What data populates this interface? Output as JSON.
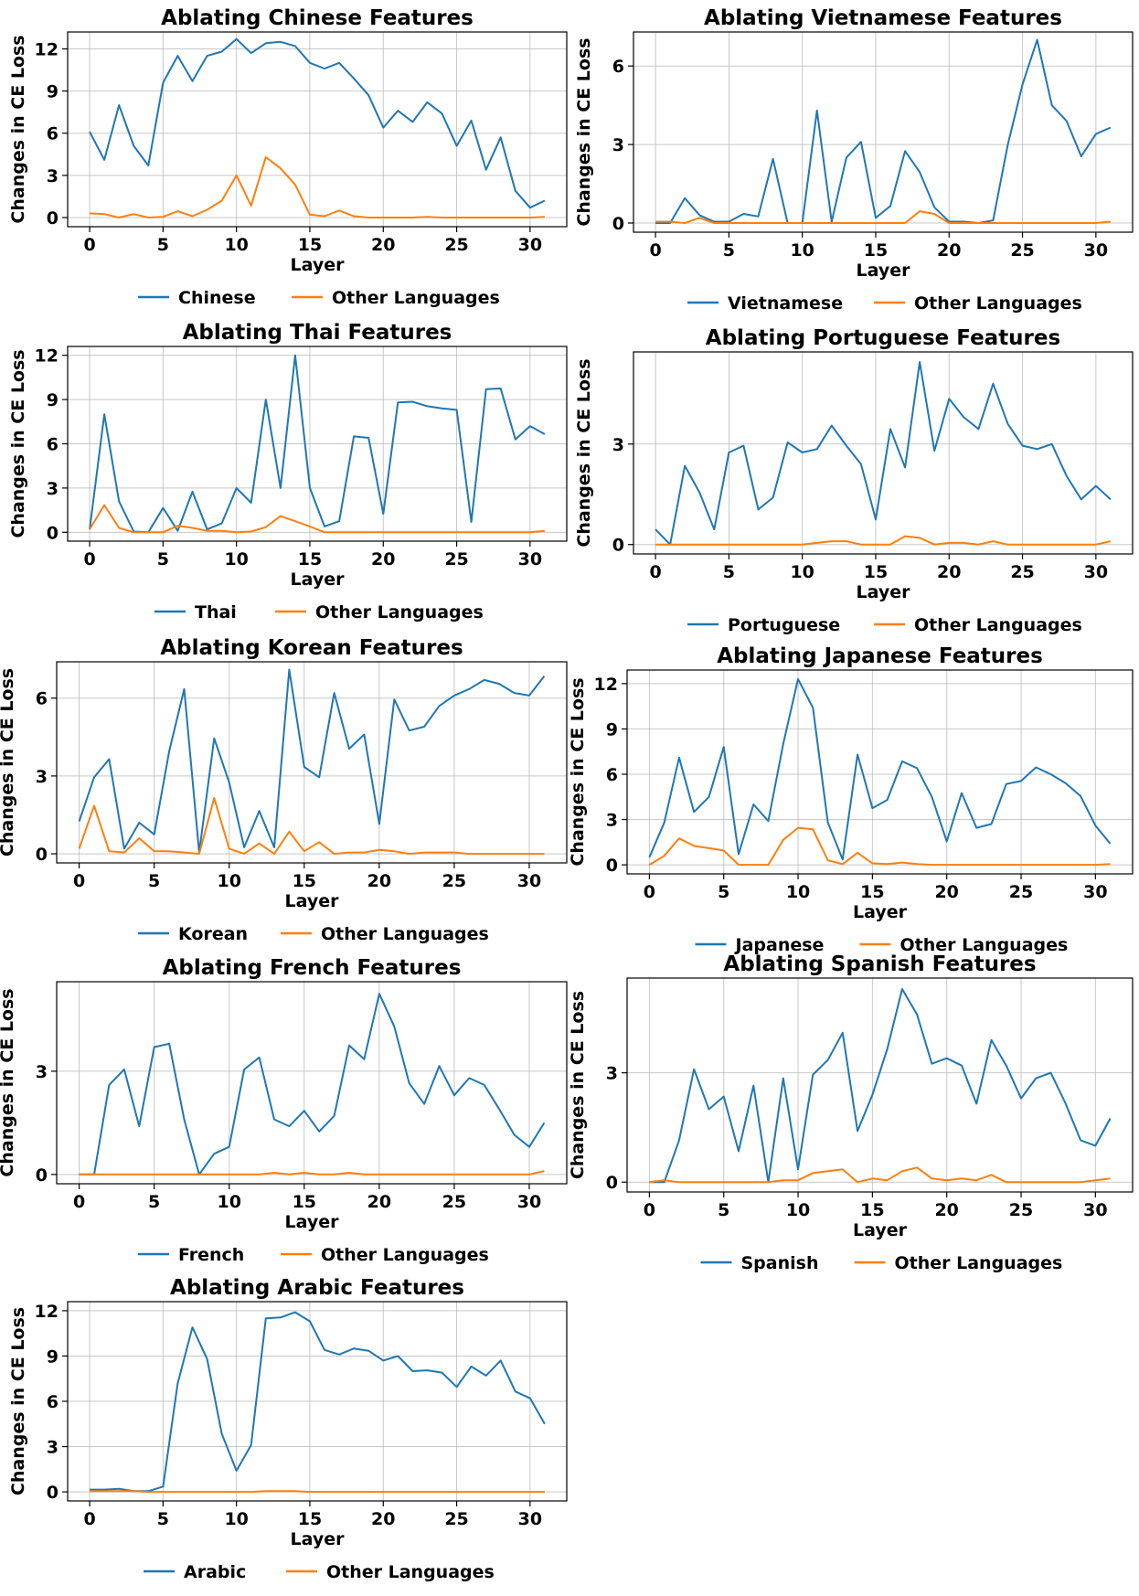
{
  "figure": {
    "other_label": "Other Languages",
    "xlabel": "Layer",
    "ylabel": "Changes in CE Loss",
    "colors": {
      "main": "#1f77b4",
      "other": "#ff7f0e",
      "grid": "#b0b0b0",
      "axis": "#000000"
    }
  },
  "chart_data": [
    {
      "type": "line",
      "language": "Chinese",
      "title": "Ablating Chinese Features",
      "xlabel": "Layer",
      "ylabel": "Changes in CE Loss",
      "xlim": [
        -1.5,
        32.5
      ],
      "ylim": [
        -0.65,
        13.2
      ],
      "xticks": [
        0,
        5,
        10,
        15,
        20,
        25,
        30
      ],
      "yticks": [
        0,
        3,
        6,
        9,
        12
      ],
      "legend": "below",
      "series": [
        {
          "name": "Chinese",
          "values": [
            6.1,
            4.1,
            8.0,
            5.1,
            3.7,
            9.6,
            11.5,
            9.7,
            11.5,
            11.8,
            12.7,
            11.7,
            12.4,
            12.5,
            12.2,
            11.0,
            10.6,
            11.0,
            9.9,
            8.7,
            6.4,
            7.6,
            6.8,
            8.2,
            7.4,
            5.1,
            6.9,
            3.4,
            5.7,
            1.9,
            0.7,
            1.2
          ]
        },
        {
          "name": "Other Languages",
          "values": [
            0.3,
            0.25,
            0.0,
            0.25,
            0.0,
            0.05,
            0.45,
            0.1,
            0.55,
            1.2,
            3.0,
            0.85,
            4.3,
            3.5,
            2.35,
            0.2,
            0.1,
            0.5,
            0.1,
            0.0,
            0.0,
            0.0,
            0.0,
            0.05,
            0.0,
            0.0,
            0.0,
            0.0,
            0.0,
            0.0,
            0.0,
            0.05
          ]
        }
      ]
    },
    {
      "type": "line",
      "language": "Vietnamese",
      "title": "Ablating Vietnamese Features",
      "xlabel": "Layer",
      "ylabel": "Changes in CE Loss",
      "xlim": [
        -1.5,
        32.5
      ],
      "ylim": [
        -0.35,
        7.3
      ],
      "xticks": [
        0,
        5,
        10,
        15,
        20,
        25,
        30
      ],
      "yticks": [
        0,
        3,
        6
      ],
      "legend": "below",
      "series": [
        {
          "name": "Vietnamese",
          "values": [
            0.0,
            0.0,
            0.95,
            0.3,
            0.05,
            0.05,
            0.35,
            0.25,
            2.45,
            0.0,
            0.0,
            4.3,
            0.05,
            2.5,
            3.1,
            0.2,
            0.65,
            2.75,
            1.95,
            0.6,
            0.05,
            0.05,
            0.0,
            0.1,
            3.0,
            5.3,
            7.0,
            4.5,
            3.9,
            2.55,
            3.4,
            3.65
          ]
        },
        {
          "name": "Other Languages",
          "values": [
            0.05,
            0.05,
            0.0,
            0.2,
            0.0,
            0.0,
            0.0,
            0.0,
            0.0,
            0.0,
            0.0,
            0.0,
            0.0,
            0.0,
            0.0,
            0.0,
            0.0,
            0.0,
            0.45,
            0.35,
            0.0,
            0.0,
            0.0,
            0.0,
            0.0,
            0.0,
            0.0,
            0.0,
            0.0,
            0.0,
            0.0,
            0.05
          ]
        }
      ]
    },
    {
      "type": "line",
      "language": "Thai",
      "title": "Ablating Thai Features",
      "xlabel": "Layer",
      "ylabel": "Changes in CE Loss",
      "xlim": [
        -1.5,
        32.5
      ],
      "ylim": [
        -0.6,
        12.6
      ],
      "xticks": [
        0,
        5,
        10,
        15,
        20,
        25,
        30
      ],
      "yticks": [
        0,
        3,
        6,
        9,
        12
      ],
      "legend": "below",
      "series": [
        {
          "name": "Thai",
          "values": [
            0.2,
            8.0,
            2.1,
            0.05,
            0.0,
            1.65,
            0.1,
            2.75,
            0.2,
            0.6,
            3.0,
            2.0,
            9.0,
            3.0,
            12.0,
            3.0,
            0.4,
            0.75,
            6.5,
            6.4,
            1.25,
            8.8,
            8.85,
            8.55,
            8.4,
            8.3,
            0.7,
            9.7,
            9.75,
            6.3,
            7.2,
            6.65
          ]
        },
        {
          "name": "Other Languages",
          "values": [
            0.2,
            1.85,
            0.3,
            0.0,
            0.0,
            0.0,
            0.45,
            0.3,
            0.1,
            0.1,
            0.0,
            0.05,
            0.35,
            1.1,
            0.75,
            0.4,
            0.0,
            0.0,
            0.0,
            0.0,
            0.0,
            0.0,
            0.0,
            0.0,
            0.0,
            0.0,
            0.0,
            0.0,
            0.0,
            0.0,
            0.0,
            0.1
          ]
        }
      ]
    },
    {
      "type": "line",
      "language": "Portuguese",
      "title": "Ablating Portuguese Features",
      "xlabel": "Layer",
      "ylabel": "Changes in CE Loss",
      "xlim": [
        -1.5,
        32.5
      ],
      "ylim": [
        -0.28,
        5.75
      ],
      "xticks": [
        0,
        5,
        10,
        15,
        20,
        25,
        30
      ],
      "yticks": [
        0,
        3
      ],
      "legend": "below",
      "series": [
        {
          "name": "Portuguese",
          "values": [
            0.45,
            0.0,
            2.35,
            1.55,
            0.45,
            2.75,
            2.95,
            1.05,
            1.4,
            3.05,
            2.75,
            2.85,
            3.55,
            2.95,
            2.4,
            0.75,
            3.45,
            2.3,
            5.45,
            2.8,
            4.35,
            3.8,
            3.45,
            4.8,
            3.6,
            2.95,
            2.85,
            3.0,
            2.05,
            1.35,
            1.75,
            1.35
          ]
        },
        {
          "name": "Other Languages",
          "values": [
            0.0,
            0.0,
            0.0,
            0.0,
            0.0,
            0.0,
            0.0,
            0.0,
            0.0,
            0.0,
            0.0,
            0.05,
            0.1,
            0.1,
            0.0,
            0.0,
            0.0,
            0.25,
            0.2,
            0.0,
            0.05,
            0.05,
            0.0,
            0.1,
            0.0,
            0.0,
            0.0,
            0.0,
            0.0,
            0.0,
            0.0,
            0.1
          ]
        }
      ]
    },
    {
      "type": "line",
      "language": "Korean",
      "title": "Ablating Korean Features",
      "xlabel": "Layer",
      "ylabel": "Changes in CE Loss",
      "xlim": [
        -1.5,
        32.5
      ],
      "ylim": [
        -0.35,
        7.4
      ],
      "xticks": [
        0,
        5,
        10,
        15,
        20,
        25,
        30
      ],
      "yticks": [
        0,
        3,
        6
      ],
      "legend": "below",
      "series": [
        {
          "name": "Korean",
          "values": [
            1.25,
            2.95,
            3.65,
            0.2,
            1.2,
            0.75,
            3.95,
            6.35,
            0.05,
            4.45,
            2.75,
            0.25,
            1.65,
            0.25,
            7.1,
            3.35,
            2.95,
            6.2,
            4.05,
            4.6,
            1.15,
            5.95,
            4.75,
            4.9,
            5.7,
            6.1,
            6.35,
            6.7,
            6.55,
            6.2,
            6.1,
            6.85
          ]
        },
        {
          "name": "Other Languages",
          "values": [
            0.2,
            1.85,
            0.1,
            0.05,
            0.6,
            0.1,
            0.1,
            0.05,
            0.0,
            2.15,
            0.2,
            0.0,
            0.4,
            0.0,
            0.85,
            0.1,
            0.45,
            0.0,
            0.05,
            0.05,
            0.15,
            0.1,
            0.0,
            0.05,
            0.05,
            0.05,
            0.0,
            0.0,
            0.0,
            0.0,
            0.0,
            0.0
          ]
        }
      ]
    },
    {
      "type": "line",
      "language": "Japanese",
      "title": "Ablating Japanese Features",
      "xlabel": "Layer",
      "ylabel": "Changes in CE Loss",
      "xlim": [
        -1.5,
        32.5
      ],
      "ylim": [
        -0.6,
        12.9
      ],
      "xticks": [
        0,
        5,
        10,
        15,
        20,
        25,
        30
      ],
      "yticks": [
        0,
        3,
        6,
        9,
        12
      ],
      "legend": "below",
      "series": [
        {
          "name": "Japanese",
          "values": [
            0.5,
            2.8,
            7.1,
            3.5,
            4.5,
            7.8,
            0.7,
            4.0,
            2.9,
            8.0,
            12.3,
            10.4,
            2.8,
            0.35,
            7.3,
            3.75,
            4.3,
            6.85,
            6.4,
            4.5,
            1.55,
            4.75,
            2.45,
            2.7,
            5.35,
            5.55,
            6.45,
            6.0,
            5.4,
            4.55,
            2.6,
            1.4
          ]
        },
        {
          "name": "Other Languages",
          "values": [
            0.0,
            0.6,
            1.75,
            1.25,
            1.1,
            0.95,
            0.0,
            0.0,
            0.0,
            1.65,
            2.45,
            2.35,
            0.3,
            0.05,
            0.8,
            0.1,
            0.05,
            0.15,
            0.05,
            0.0,
            0.0,
            0.0,
            0.0,
            0.0,
            0.0,
            0.0,
            0.0,
            0.0,
            0.0,
            0.0,
            0.0,
            0.05
          ]
        }
      ]
    },
    {
      "type": "line",
      "language": "French",
      "title": "Ablating French Features",
      "xlabel": "Layer",
      "ylabel": "Changes in CE Loss",
      "xlim": [
        -1.5,
        32.5
      ],
      "ylim": [
        -0.27,
        5.6
      ],
      "xticks": [
        0,
        5,
        10,
        15,
        20,
        25,
        30
      ],
      "yticks": [
        0,
        3
      ],
      "legend": "below",
      "series": [
        {
          "name": "French",
          "values": [
            0.0,
            0.0,
            2.6,
            3.05,
            1.4,
            3.7,
            3.8,
            1.6,
            0.0,
            0.6,
            0.8,
            3.05,
            3.4,
            1.6,
            1.4,
            1.85,
            1.25,
            1.7,
            3.75,
            3.35,
            5.25,
            4.3,
            2.65,
            2.05,
            3.15,
            2.3,
            2.8,
            2.6,
            1.9,
            1.15,
            0.8,
            1.5
          ]
        },
        {
          "name": "Other Languages",
          "values": [
            0.0,
            0.0,
            0.0,
            0.0,
            0.0,
            0.0,
            0.0,
            0.0,
            0.0,
            0.0,
            0.0,
            0.0,
            0.0,
            0.05,
            0.0,
            0.05,
            0.0,
            0.0,
            0.05,
            0.0,
            0.0,
            0.0,
            0.0,
            0.0,
            0.0,
            0.0,
            0.0,
            0.0,
            0.0,
            0.0,
            0.0,
            0.1
          ]
        }
      ]
    },
    {
      "type": "line",
      "language": "Spanish",
      "title": "Ablating Spanish Features",
      "xlabel": "Layer",
      "ylabel": "Changes in CE Loss",
      "xlim": [
        -1.5,
        32.5
      ],
      "ylim": [
        -0.27,
        5.6
      ],
      "xticks": [
        0,
        5,
        10,
        15,
        20,
        25,
        30
      ],
      "yticks": [
        0,
        3
      ],
      "legend": "below",
      "series": [
        {
          "name": "Spanish",
          "values": [
            0.0,
            0.0,
            1.15,
            3.1,
            2.0,
            2.35,
            0.85,
            2.65,
            0.0,
            2.85,
            0.35,
            2.95,
            3.35,
            4.1,
            1.4,
            2.4,
            3.65,
            5.3,
            4.6,
            3.25,
            3.4,
            3.2,
            2.15,
            3.9,
            3.2,
            2.3,
            2.85,
            3.0,
            2.15,
            1.15,
            1.0,
            1.75
          ]
        },
        {
          "name": "Other Languages",
          "values": [
            0.0,
            0.05,
            0.0,
            0.0,
            0.0,
            0.0,
            0.0,
            0.0,
            0.0,
            0.05,
            0.05,
            0.25,
            0.3,
            0.35,
            0.0,
            0.1,
            0.05,
            0.3,
            0.4,
            0.1,
            0.05,
            0.1,
            0.05,
            0.2,
            0.0,
            0.0,
            0.0,
            0.0,
            0.0,
            0.0,
            0.05,
            0.1
          ]
        }
      ]
    },
    {
      "type": "line",
      "language": "Arabic",
      "title": "Ablating Arabic Features",
      "xlabel": "Layer",
      "ylabel": "Changes in CE Loss",
      "xlim": [
        -1.5,
        32.5
      ],
      "ylim": [
        -0.6,
        12.6
      ],
      "xticks": [
        0,
        5,
        10,
        15,
        20,
        25,
        30
      ],
      "yticks": [
        0,
        3,
        6,
        9,
        12
      ],
      "legend": "below",
      "series": [
        {
          "name": "Arabic",
          "values": [
            0.15,
            0.15,
            0.2,
            0.05,
            0.05,
            0.35,
            7.2,
            10.9,
            8.8,
            3.85,
            1.4,
            3.1,
            11.5,
            11.55,
            11.9,
            11.3,
            9.4,
            9.1,
            9.5,
            9.35,
            8.7,
            9.0,
            8.0,
            8.05,
            7.9,
            6.95,
            8.3,
            7.7,
            8.7,
            6.65,
            6.2,
            4.5
          ]
        },
        {
          "name": "Other Languages",
          "values": [
            0.05,
            0.05,
            0.05,
            0.05,
            0.0,
            0.0,
            0.0,
            0.0,
            0.0,
            0.0,
            0.0,
            0.0,
            0.05,
            0.05,
            0.05,
            0.0,
            0.0,
            0.0,
            0.0,
            0.0,
            0.0,
            0.0,
            0.0,
            0.0,
            0.0,
            0.0,
            0.0,
            0.0,
            0.0,
            0.0,
            0.0,
            0.0
          ]
        }
      ]
    }
  ]
}
